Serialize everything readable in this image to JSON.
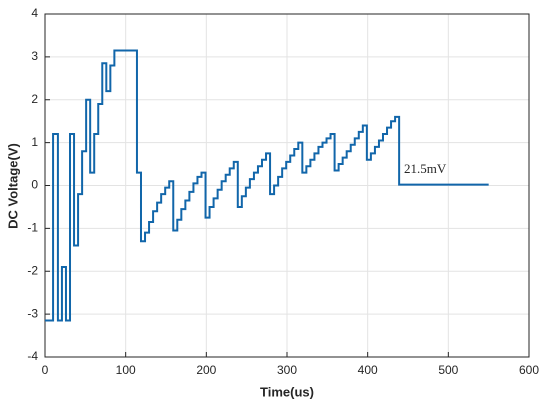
{
  "chart_data": {
    "type": "line",
    "step": true,
    "x_label": "Time(us)",
    "y_label": "DC Voltage(V)",
    "annotation": "21.5mV",
    "xlim": [
      0,
      600
    ],
    "xticks": [
      0,
      100,
      200,
      300,
      400,
      500,
      600
    ],
    "ylim": [
      -4,
      4
    ],
    "yticks": [
      -4,
      -3,
      -2,
      -1,
      0,
      1,
      2,
      3,
      4
    ],
    "grid": true,
    "series": [
      {
        "color": "#1166aa",
        "x": [
          0,
          10,
          10,
          16,
          16,
          21,
          21,
          26,
          26,
          31,
          31,
          36,
          36,
          41,
          41,
          46,
          46,
          51,
          51,
          56,
          56,
          61,
          61,
          66,
          66,
          71,
          71,
          76,
          76,
          81,
          81,
          86,
          86,
          114,
          114,
          119,
          119,
          124,
          124,
          129,
          129,
          134,
          134,
          139,
          139,
          144,
          144,
          149,
          149,
          154,
          154,
          159,
          159,
          164,
          164,
          169,
          169,
          174,
          174,
          179,
          179,
          184,
          184,
          189,
          189,
          194,
          194,
          199,
          199,
          204,
          204,
          209,
          209,
          214,
          214,
          219,
          219,
          224,
          224,
          229,
          229,
          234,
          234,
          239,
          239,
          244,
          244,
          249,
          249,
          254,
          254,
          259,
          259,
          264,
          264,
          269,
          269,
          274,
          274,
          279,
          279,
          284,
          284,
          289,
          289,
          294,
          294,
          299,
          299,
          304,
          304,
          309,
          309,
          314,
          314,
          319,
          319,
          324,
          324,
          329,
          329,
          334,
          334,
          339,
          339,
          344,
          344,
          349,
          349,
          354,
          354,
          359,
          359,
          364,
          364,
          369,
          369,
          374,
          374,
          379,
          379,
          384,
          384,
          389,
          389,
          394,
          394,
          399,
          399,
          404,
          404,
          409,
          409,
          414,
          414,
          419,
          419,
          424,
          424,
          429,
          429,
          434,
          434,
          439,
          439,
          550
        ],
        "values": [
          -3.15,
          -3.15,
          1.2,
          1.2,
          -3.15,
          -3.15,
          -1.9,
          -1.9,
          -3.15,
          -3.15,
          1.2,
          1.2,
          -1.4,
          -1.4,
          -0.2,
          -0.2,
          0.8,
          0.8,
          2,
          2,
          0.3,
          0.3,
          1.2,
          1.2,
          1.9,
          1.9,
          2.85,
          2.85,
          2.2,
          2.2,
          2.8,
          2.8,
          3.15,
          3.15,
          0.3,
          0.3,
          -1.3,
          -1.3,
          -1.1,
          -1.1,
          -0.85,
          -0.85,
          -0.6,
          -0.6,
          -0.4,
          -0.4,
          -0.2,
          -0.2,
          -0.05,
          -0.05,
          0.1,
          0.1,
          -1.05,
          -1.05,
          -0.8,
          -0.8,
          -0.55,
          -0.55,
          -0.35,
          -0.35,
          -0.15,
          -0.15,
          0.05,
          0.05,
          0.2,
          0.2,
          0.3,
          0.3,
          -0.75,
          -0.75,
          -0.5,
          -0.5,
          -0.3,
          -0.3,
          -0.1,
          -0.1,
          0.1,
          0.1,
          0.25,
          0.25,
          0.4,
          0.4,
          0.55,
          0.55,
          -0.5,
          -0.5,
          -0.25,
          -0.25,
          -0.05,
          -0.05,
          0.15,
          0.15,
          0.3,
          0.3,
          0.45,
          0.45,
          0.6,
          0.6,
          0.75,
          0.75,
          -0.2,
          -0.2,
          0,
          0,
          0.2,
          0.2,
          0.4,
          0.4,
          0.55,
          0.55,
          0.7,
          0.7,
          0.85,
          0.85,
          1,
          1,
          0.3,
          0.3,
          0.45,
          0.45,
          0.6,
          0.6,
          0.75,
          0.75,
          0.9,
          0.9,
          1,
          1,
          1.1,
          1.1,
          1.2,
          1.2,
          0.35,
          0.35,
          0.5,
          0.5,
          0.65,
          0.65,
          0.8,
          0.8,
          0.95,
          0.95,
          1.1,
          1.1,
          1.25,
          1.25,
          1.4,
          1.4,
          0.6,
          0.6,
          0.75,
          0.75,
          0.9,
          0.9,
          1.05,
          1.05,
          1.2,
          1.2,
          1.35,
          1.35,
          1.5,
          1.5,
          1.6,
          1.6,
          0.02,
          0.02
        ]
      }
    ]
  }
}
